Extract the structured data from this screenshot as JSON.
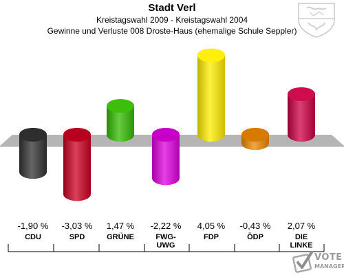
{
  "header": {
    "title": "Stadt Verl",
    "subtitle1": "Kreistagswahl 2009 - Kreistagswahl 2004",
    "subtitle2": "Gewinne und Verluste 008 Droste-Haus (ehemalige Schule Seppler)"
  },
  "branding": {
    "line1": "VOTE",
    "line2": "MANAGER",
    "crest_icon": "coat-of-arms-icon",
    "brand_icon": "ballot-check-icon"
  },
  "chart_data": {
    "type": "bar",
    "categories": [
      "CDU",
      "SPD",
      "GRÜNE",
      "FWG-\nUWG",
      "FDP",
      "ÖDP",
      "DIE\nLINKE"
    ],
    "values": [
      -1.9,
      -3.03,
      1.47,
      -2.22,
      4.05,
      -0.43,
      2.07
    ],
    "value_labels": [
      "-1,90 %",
      "-3,03 %",
      "1,47 %",
      "-2,22 %",
      "4,05 %",
      "-0,43 %",
      "2,07 %"
    ],
    "colors": [
      "#333333",
      "#cc0022",
      "#33bb00",
      "#dd00dd",
      "#ffee00",
      "#ee8800",
      "#cc0044"
    ],
    "grid": false,
    "legend": "none"
  }
}
